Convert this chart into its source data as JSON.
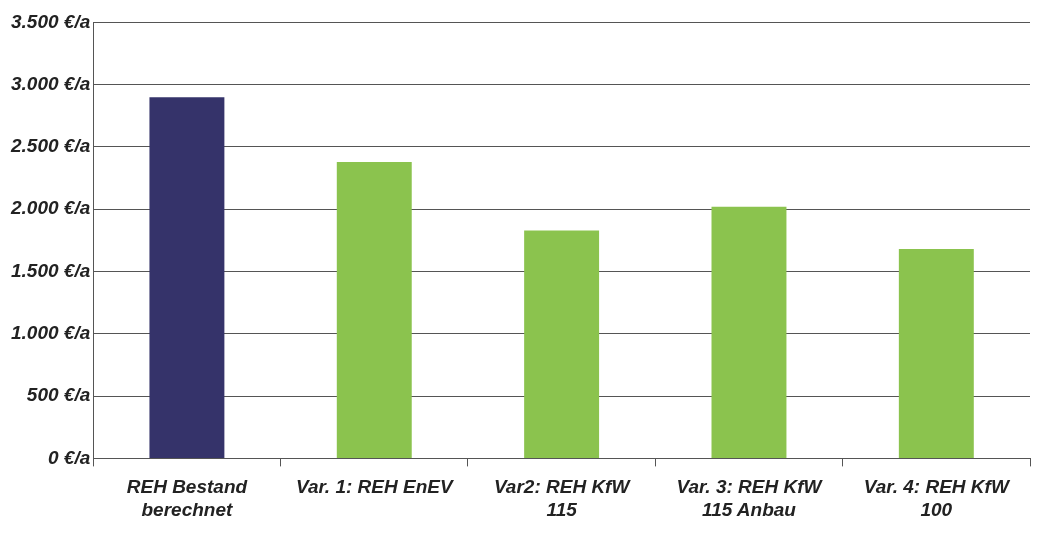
{
  "chart_data": {
    "type": "bar",
    "categories": [
      "REH Bestand\nberechnet",
      "Var. 1: REH EnEV",
      "Var2: REH KfW\n115",
      "Var. 3: REH KfW\n115 Anbau",
      "Var. 4: REH KfW\n100"
    ],
    "values": [
      2900,
      2380,
      1830,
      2020,
      1680
    ],
    "colors": [
      "#35336a",
      "#8bc34e",
      "#8bc34e",
      "#8bc34e",
      "#8bc34e"
    ],
    "ylim": [
      0,
      3500
    ],
    "yticks": [
      {
        "value": 0,
        "label": "0 €/a"
      },
      {
        "value": 500,
        "label": "500 €/a"
      },
      {
        "value": 1000,
        "label": "1.000 €/a"
      },
      {
        "value": 1500,
        "label": "1.500 €/a"
      },
      {
        "value": 2000,
        "label": "2.000 €/a"
      },
      {
        "value": 2500,
        "label": "2.500 €/a"
      },
      {
        "value": 3000,
        "label": "3.000 €/a"
      },
      {
        "value": 3500,
        "label": "3.500 €/a"
      }
    ],
    "grid": "y",
    "legend": false
  }
}
